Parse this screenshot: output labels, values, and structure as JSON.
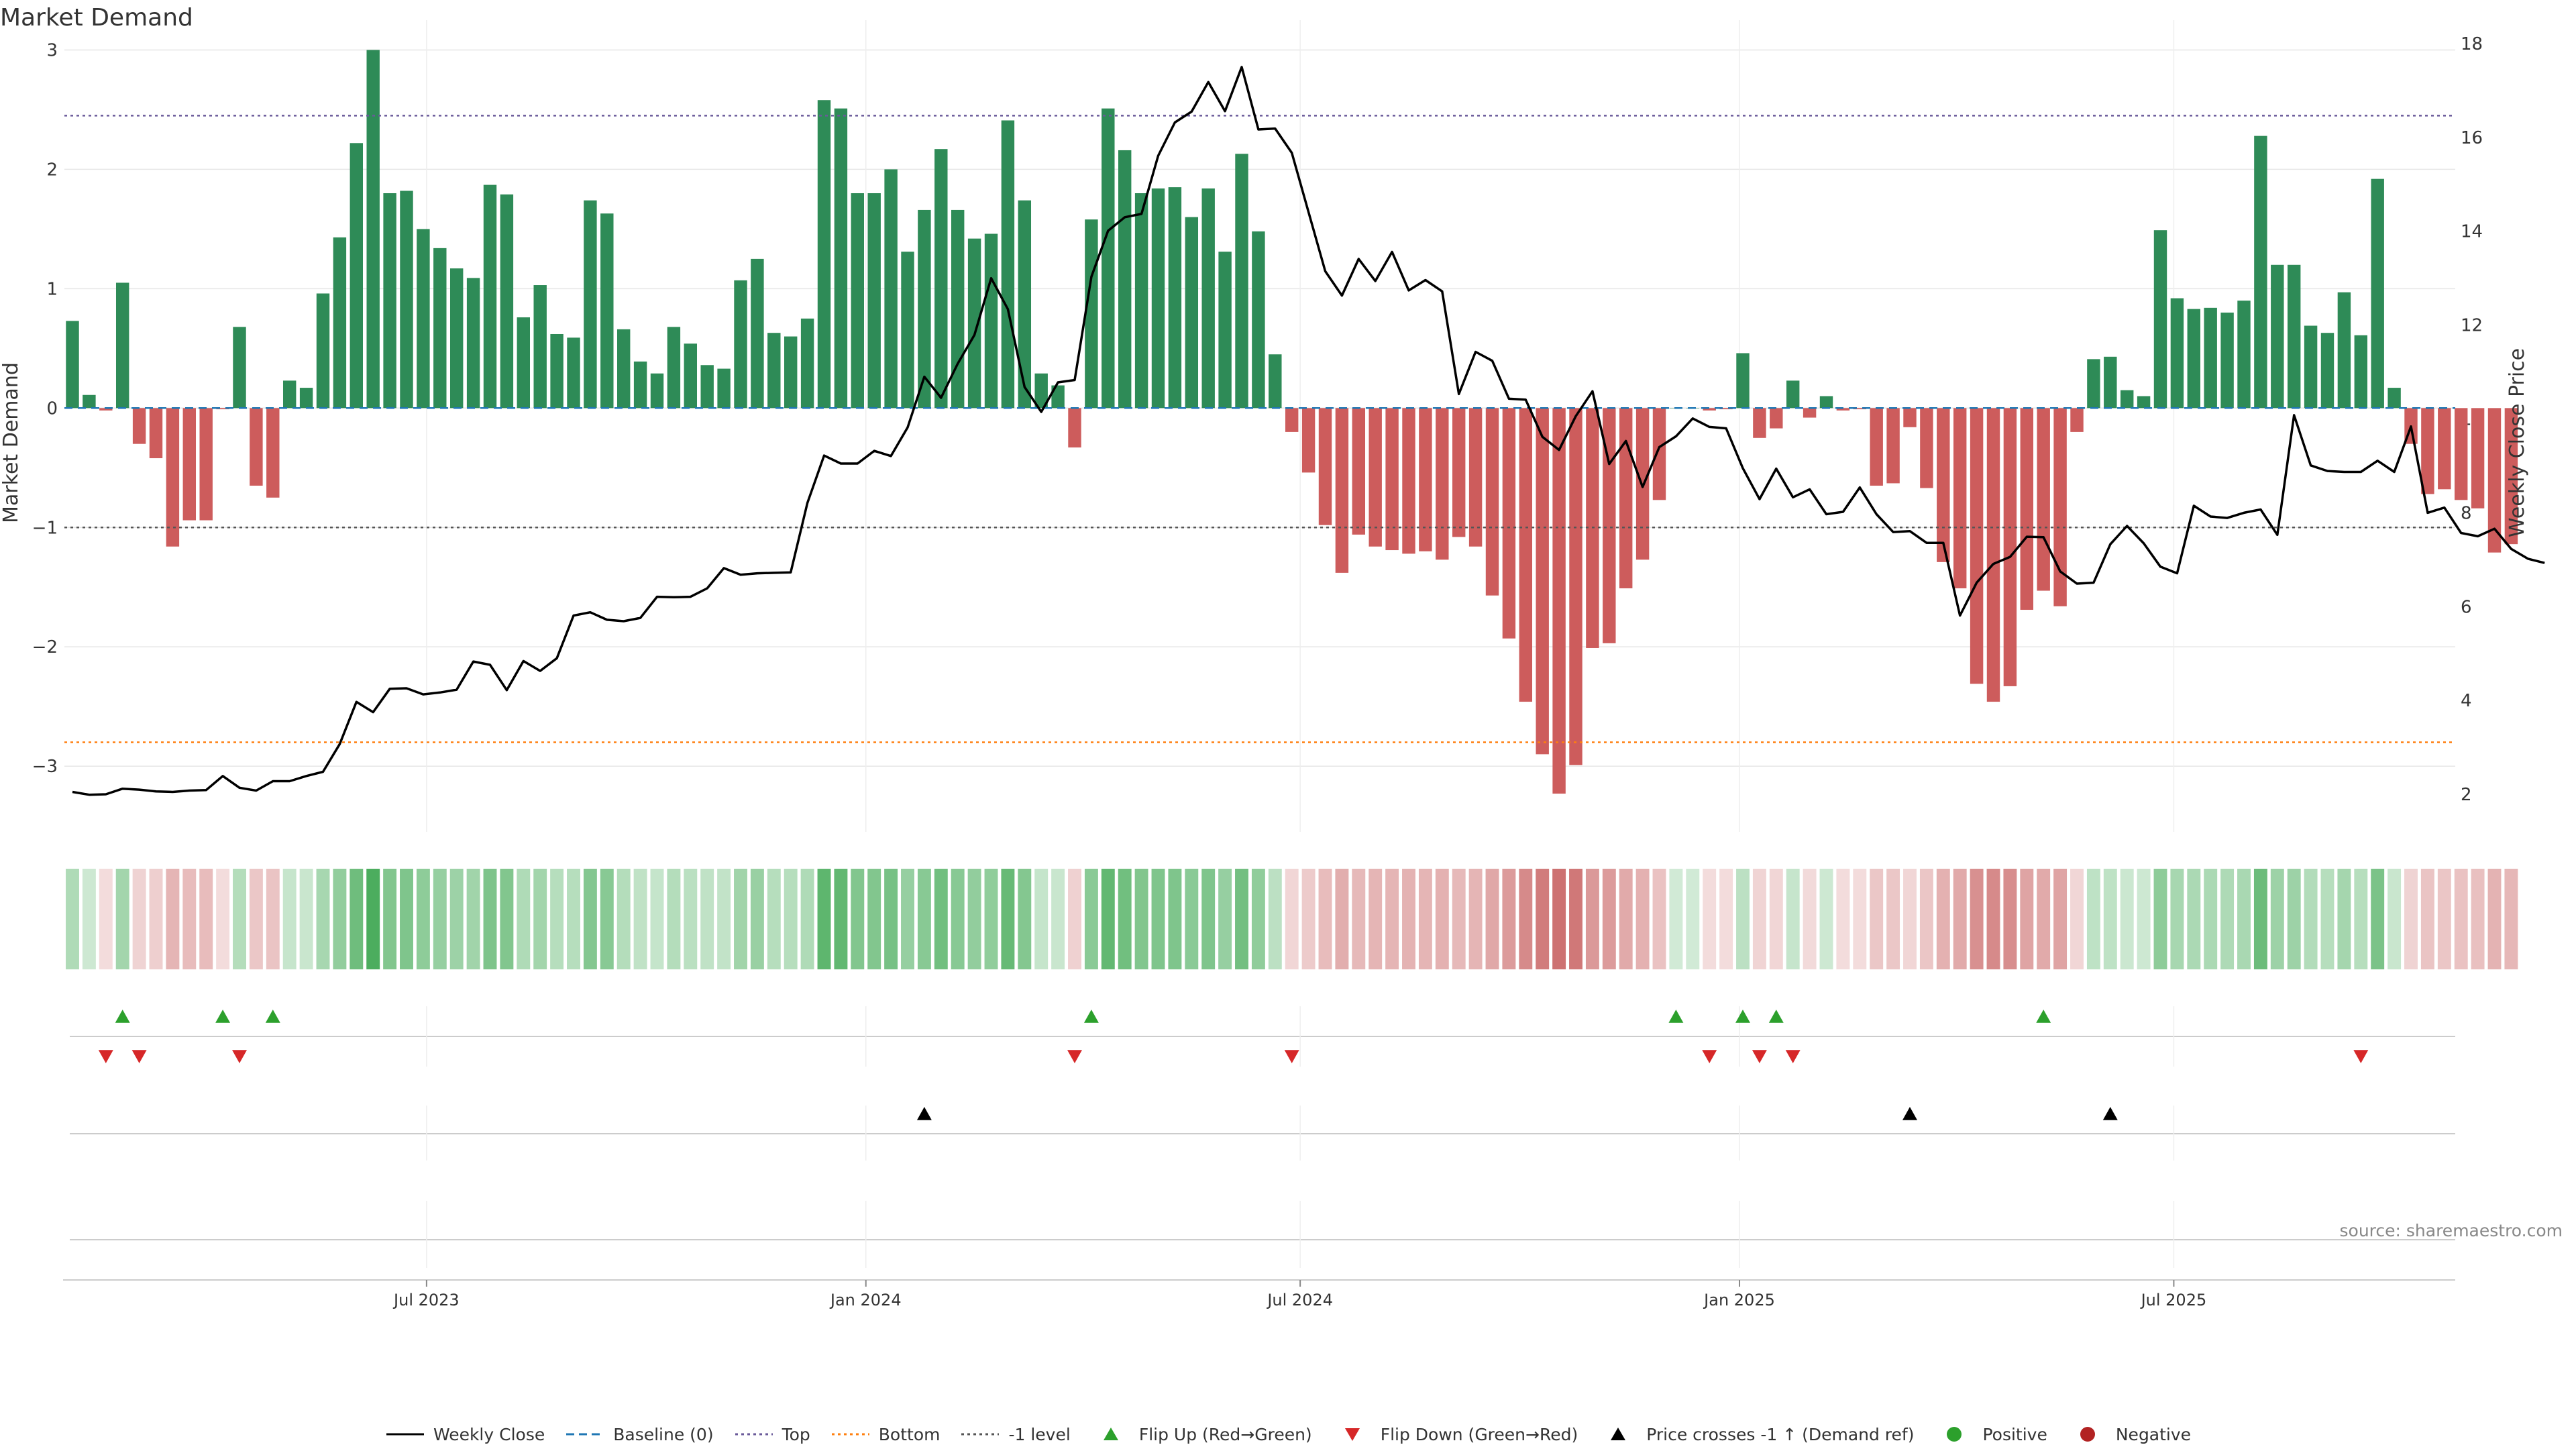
{
  "title": "Market Demand",
  "source": "source: sharemaestro.com",
  "legend": [
    {
      "label": "Weekly Close",
      "sym": "solid",
      "color": "#000000"
    },
    {
      "label": "Baseline (0)",
      "sym": "dash",
      "color": "#1f77b4"
    },
    {
      "label": "Top",
      "sym": "dot",
      "color": "#6a5a9a"
    },
    {
      "label": "Bottom",
      "sym": "dot",
      "color": "#ff7f0e"
    },
    {
      "label": "-1 level",
      "sym": "dot",
      "color": "#555555"
    },
    {
      "label": "Flip Up (Red→Green)",
      "sym": "tri-up",
      "color": "#2ca02c"
    },
    {
      "label": "Flip Down (Green→Red)",
      "sym": "tri-down",
      "color": "#d62728"
    },
    {
      "label": "Price crosses -1 ↑ (Demand ref)",
      "sym": "tri-up",
      "color": "#000000"
    },
    {
      "label": "Positive",
      "sym": "circle",
      "color": "#2ca02c"
    },
    {
      "label": "Negative",
      "sym": "circle",
      "color": "#b22222"
    }
  ],
  "chart_data": {
    "type": "bar",
    "title": "Market Demand",
    "ylabel": "Market Demand",
    "y2label": "Weekly Close Price",
    "ylim": [
      -3.55,
      3.25
    ],
    "y2lim": [
      1.2,
      18.5
    ],
    "yticks": [
      3,
      2,
      1,
      0,
      -1,
      -2,
      -3
    ],
    "y2ticks": [
      18,
      16,
      14,
      12,
      10,
      8,
      6,
      4,
      2
    ],
    "xticks": [
      {
        "label": "Jul 2023",
        "week": 21.2
      },
      {
        "label": "Jan 2024",
        "week": 47.5
      },
      {
        "label": "Jul 2024",
        "week": 73.5
      },
      {
        "label": "Jan 2025",
        "week": 99.8
      },
      {
        "label": "Jul 2025",
        "week": 125.8
      }
    ],
    "reference_lines": {
      "top": 2.45,
      "bottom": -2.8,
      "minus_one": -1.0,
      "baseline": 0
    },
    "colors": {
      "positive": "#2e8b57",
      "negative": "#cd5c5c",
      "price": "#000000",
      "top": "#6a5a9a",
      "bottom": "#ff7f0e",
      "minus_one": "#555555",
      "baseline": "#1f77b4",
      "flip_up": "#2ca02c",
      "flip_down": "#d62728",
      "cross": "#000000"
    },
    "demand": [
      0.73,
      0.11,
      -0.02,
      1.05,
      -0.3,
      -0.42,
      -1.16,
      -0.94,
      -0.94,
      -0.01,
      0.68,
      -0.65,
      -0.75,
      0.23,
      0.17,
      0.96,
      1.43,
      2.22,
      3.0,
      1.8,
      1.82,
      1.5,
      1.34,
      1.17,
      1.09,
      1.87,
      1.79,
      0.76,
      1.03,
      0.62,
      0.59,
      1.74,
      1.63,
      0.66,
      0.39,
      0.29,
      0.68,
      0.54,
      0.36,
      0.33,
      1.07,
      1.25,
      0.63,
      0.6,
      0.75,
      2.58,
      2.51,
      1.8,
      1.8,
      2.0,
      1.31,
      1.66,
      2.17,
      1.66,
      1.42,
      1.46,
      2.41,
      1.74,
      0.29,
      0.19,
      -0.33,
      1.58,
      2.51,
      2.16,
      1.8,
      1.84,
      1.85,
      1.6,
      1.84,
      1.31,
      2.13,
      1.48,
      0.45,
      -0.2,
      -0.54,
      -0.98,
      -1.38,
      -1.06,
      -1.16,
      -1.19,
      -1.22,
      -1.2,
      -1.27,
      -1.08,
      -1.16,
      -1.57,
      -1.93,
      -2.46,
      -2.9,
      -3.23,
      -2.99,
      -2.01,
      -1.97,
      -1.51,
      -1.27,
      -0.77,
      0.0,
      0.0,
      -0.02,
      -0.01,
      0.46,
      -0.25,
      -0.17,
      0.23,
      -0.08,
      0.1,
      -0.02,
      -0.01,
      -0.65,
      -0.63,
      -0.16,
      -0.67,
      -1.29,
      -1.51,
      -2.31,
      -2.46,
      -2.33,
      -1.69,
      -1.53,
      -1.66,
      -0.2,
      0.41,
      0.43,
      0.15,
      0.1,
      1.49,
      0.92,
      0.83,
      0.84,
      0.8,
      0.9,
      2.28,
      1.2,
      1.2,
      0.69,
      0.63,
      0.97,
      0.61,
      1.92,
      0.17,
      -0.3,
      -0.72,
      -0.68,
      -0.77,
      -0.84,
      -1.21,
      -1.14
    ],
    "price": [
      2.05,
      1.99,
      2.0,
      2.12,
      2.1,
      2.06,
      2.05,
      2.08,
      2.09,
      2.39,
      2.14,
      2.08,
      2.28,
      2.28,
      2.39,
      2.48,
      3.07,
      3.97,
      3.75,
      4.25,
      4.26,
      4.13,
      4.17,
      4.23,
      4.83,
      4.76,
      4.22,
      4.84,
      4.63,
      4.9,
      5.81,
      5.88,
      5.72,
      5.69,
      5.76,
      6.21,
      6.2,
      6.21,
      6.39,
      6.82,
      6.68,
      6.71,
      6.72,
      6.73,
      8.21,
      9.22,
      9.05,
      9.05,
      9.32,
      9.21,
      9.82,
      10.9,
      10.45,
      11.18,
      11.79,
      13.0,
      12.34,
      10.68,
      10.15,
      10.78,
      10.83,
      13.03,
      14.01,
      14.3,
      14.37,
      15.61,
      16.32,
      16.55,
      17.18,
      16.56,
      17.5,
      16.17,
      16.19,
      15.67,
      14.41,
      13.15,
      12.63,
      13.41,
      12.94,
      13.56,
      12.74,
      12.96,
      12.72,
      10.53,
      11.43,
      11.24,
      10.43,
      10.41,
      9.62,
      9.34,
      10.06,
      10.59,
      9.04,
      9.53,
      8.55,
      9.4,
      9.63,
      10.01,
      9.83,
      9.8,
      8.95,
      8.29,
      8.94,
      8.33,
      8.5,
      7.97,
      8.02,
      8.54,
      7.97,
      7.59,
      7.61,
      7.36,
      7.36,
      5.81,
      6.51,
      6.91,
      7.06,
      7.49,
      7.48,
      6.75,
      6.49,
      6.51,
      7.33,
      7.72,
      7.35,
      6.85,
      6.71,
      8.15,
      7.92,
      7.89,
      8.0,
      8.07,
      7.53,
      10.08,
      9.01,
      8.89,
      8.87,
      8.87,
      9.11,
      8.87,
      9.84,
      8.0,
      8.11,
      7.57,
      7.5,
      7.66,
      7.23,
      7.02,
      6.93
    ],
    "flip_up_weeks": [
      3,
      9,
      12,
      61,
      96,
      100,
      102,
      118
    ],
    "flip_down_weeks": [
      2,
      4,
      10,
      60,
      73,
      98,
      101,
      103,
      137
    ],
    "price_cross_weeks": [
      51,
      110,
      122
    ]
  }
}
